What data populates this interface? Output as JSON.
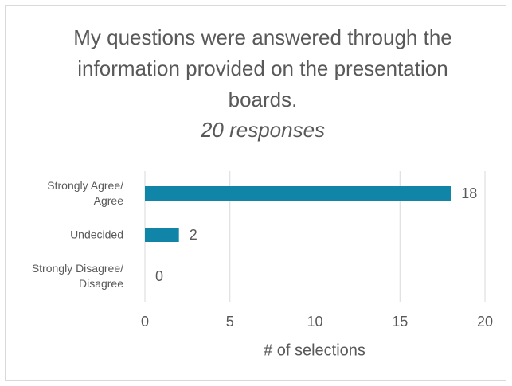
{
  "chart_data": {
    "type": "bar",
    "orientation": "horizontal",
    "title": "My questions were answered through the information provided on the presentation boards.",
    "subtitle": "20 responses",
    "categories": [
      "Strongly Agree/ Agree",
      "Undecided",
      "Strongly Disagree/ Disagree"
    ],
    "values": [
      18,
      2,
      0
    ],
    "color": "#1185a8",
    "xlabel": "# of selections",
    "xlim": [
      0,
      20
    ],
    "xticks": [
      0,
      5,
      10,
      15,
      20
    ],
    "grid": true
  }
}
